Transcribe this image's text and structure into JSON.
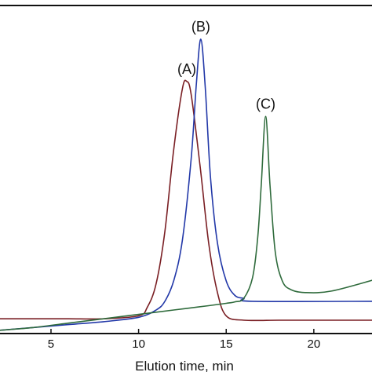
{
  "chart_data": {
    "type": "line",
    "title": "",
    "xlabel": "Elution time, min",
    "ylabel": "",
    "xlim": [
      2,
      23.5
    ],
    "ylim": [
      0,
      1
    ],
    "x_ticks": [
      5,
      10,
      15,
      20
    ],
    "x_tick_labels": [
      "5",
      "10",
      "15",
      "20"
    ],
    "grid": false,
    "legend": "none",
    "series": [
      {
        "name": "(A)",
        "color": "#7a1f24",
        "peak_x": 12.75,
        "x": [
          2,
          4,
          6,
          8,
          10,
          10.5,
          11,
          11.5,
          12,
          12.5,
          12.75,
          13,
          13.5,
          14,
          14.5,
          15,
          16,
          18,
          20,
          23.5
        ],
        "y": [
          0.04,
          0.04,
          0.04,
          0.04,
          0.05,
          0.08,
          0.16,
          0.34,
          0.62,
          0.83,
          0.855,
          0.81,
          0.57,
          0.3,
          0.13,
          0.05,
          0.035,
          0.035,
          0.035,
          0.035
        ]
      },
      {
        "name": "(B)",
        "color": "#2238a8",
        "peak_x": 13.55,
        "x": [
          2,
          4,
          6,
          8,
          10,
          11,
          11.5,
          12,
          12.5,
          13,
          13.3,
          13.55,
          13.8,
          14.1,
          14.5,
          15,
          15.5,
          16,
          16.5,
          23.5
        ],
        "y": [
          0,
          0.01,
          0.02,
          0.03,
          0.045,
          0.07,
          0.1,
          0.17,
          0.31,
          0.59,
          0.85,
          1,
          0.84,
          0.53,
          0.3,
          0.17,
          0.12,
          0.11,
          0.1,
          0.1
        ]
      },
      {
        "name": "(C)",
        "color": "#2f6b3c",
        "peak_x": 17.25,
        "x": [
          2,
          4,
          6,
          8,
          10,
          12,
          14,
          15,
          15.5,
          16,
          16.5,
          16.8,
          17,
          17.25,
          17.5,
          17.8,
          18.2,
          18.7,
          19.5,
          21,
          23.5
        ],
        "y": [
          0,
          0.01,
          0.025,
          0.04,
          0.055,
          0.07,
          0.085,
          0.093,
          0.098,
          0.11,
          0.18,
          0.32,
          0.5,
          0.735,
          0.5,
          0.27,
          0.17,
          0.14,
          0.13,
          0.135,
          0.175
        ]
      }
    ]
  }
}
